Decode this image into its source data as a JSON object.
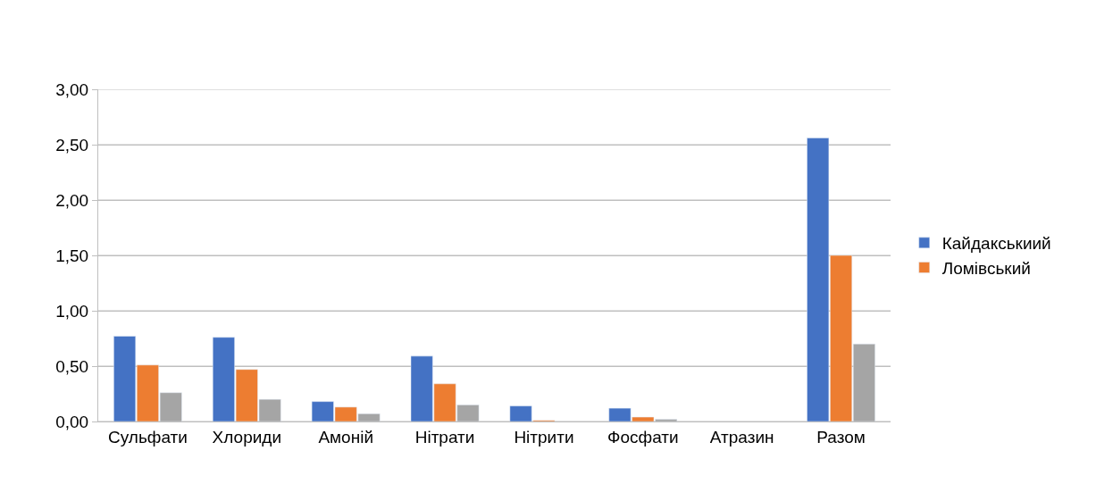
{
  "chart_data": {
    "type": "bar",
    "categories": [
      "Сульфати",
      "Хлориди",
      "Амоній",
      "Нітрати",
      "Нітрити",
      "Фосфати",
      "Атразин",
      "Разом"
    ],
    "series": [
      {
        "name": "Кайдакськиий",
        "color": "#4472c4",
        "values": [
          0.77,
          0.76,
          0.18,
          0.59,
          0.14,
          0.12,
          null,
          2.56
        ]
      },
      {
        "name": "Ломівський",
        "color": "#ed7d31",
        "values": [
          0.51,
          0.47,
          0.13,
          0.34,
          0.01,
          0.04,
          null,
          1.5
        ]
      },
      {
        "color": "#a5a5a5",
        "values": [
          0.26,
          0.2,
          0.07,
          0.15,
          null,
          0.02,
          null,
          0.7
        ]
      }
    ],
    "ylim": [
      0,
      3
    ],
    "yticks": [
      {
        "value": 0,
        "label": "0,00"
      },
      {
        "value": 0.5,
        "label": "0,50"
      },
      {
        "value": 1,
        "label": "1,00"
      },
      {
        "value": 1.5,
        "label": "1,50"
      },
      {
        "value": 2,
        "label": "2,00"
      },
      {
        "value": 2.5,
        "label": "2,50"
      },
      {
        "value": 3,
        "label": "3,00"
      }
    ],
    "grid": "y",
    "legend": "right"
  }
}
